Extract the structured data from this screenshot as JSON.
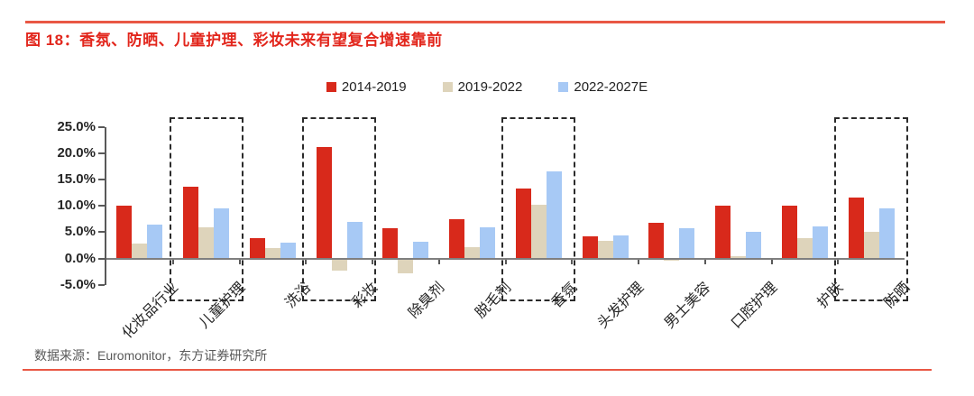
{
  "title": {
    "text": "图 18：香氛、防晒、儿童护理、彩妆未来有望复合增速靠前"
  },
  "footer": {
    "source": "数据来源：Euromonitor，东方证券研究所"
  },
  "colors": {
    "title_red": "#e2261c",
    "rule_red": "#e95744",
    "axis_gray": "#595959",
    "baseline_gray": "#7f7f7f",
    "series_red": "#d8291b",
    "series_beige": "#ded4bb",
    "series_blue": "#a7c9f5"
  },
  "chart_data": {
    "type": "bar",
    "title": "图 18：香氛、防晒、儿童护理、彩妆未来有望复合增速靠前",
    "categories": [
      "化妆品行业",
      "儿童护理",
      "洗浴",
      "彩妆",
      "除臭剂",
      "脱毛剂",
      "香氛",
      "头发护理",
      "男士美容",
      "口腔护理",
      "护肤",
      "防晒"
    ],
    "series": [
      {
        "name": "2014-2019",
        "color": "#d8291b",
        "values": [
          10.1,
          13.7,
          3.8,
          21.2,
          5.7,
          7.5,
          13.3,
          4.2,
          6.8,
          10.0,
          10.1,
          11.6
        ]
      },
      {
        "name": "2019-2022",
        "color": "#ded4bb",
        "values": [
          2.9,
          6.0,
          1.9,
          -2.3,
          -2.8,
          2.2,
          10.2,
          3.4,
          -0.5,
          0.5,
          3.9,
          5.1
        ]
      },
      {
        "name": "2022-2027E",
        "color": "#a7c9f5",
        "values": [
          6.5,
          9.6,
          3.0,
          6.9,
          3.1,
          6.0,
          16.6,
          4.4,
          5.7,
          5.1,
          6.1,
          9.6
        ]
      }
    ],
    "ylim": [
      -5,
      25
    ],
    "ytick_step": 5,
    "ytick_labels": [
      "25.0%",
      "20.0%",
      "15.0%",
      "10.0%",
      "5.0%",
      "0.0%",
      "-5.0%"
    ],
    "xlabel": "",
    "ylabel": "",
    "grid": false,
    "legend_position": "top-center",
    "highlighted_categories": [
      "儿童护理",
      "彩妆",
      "香氛",
      "防晒"
    ]
  }
}
